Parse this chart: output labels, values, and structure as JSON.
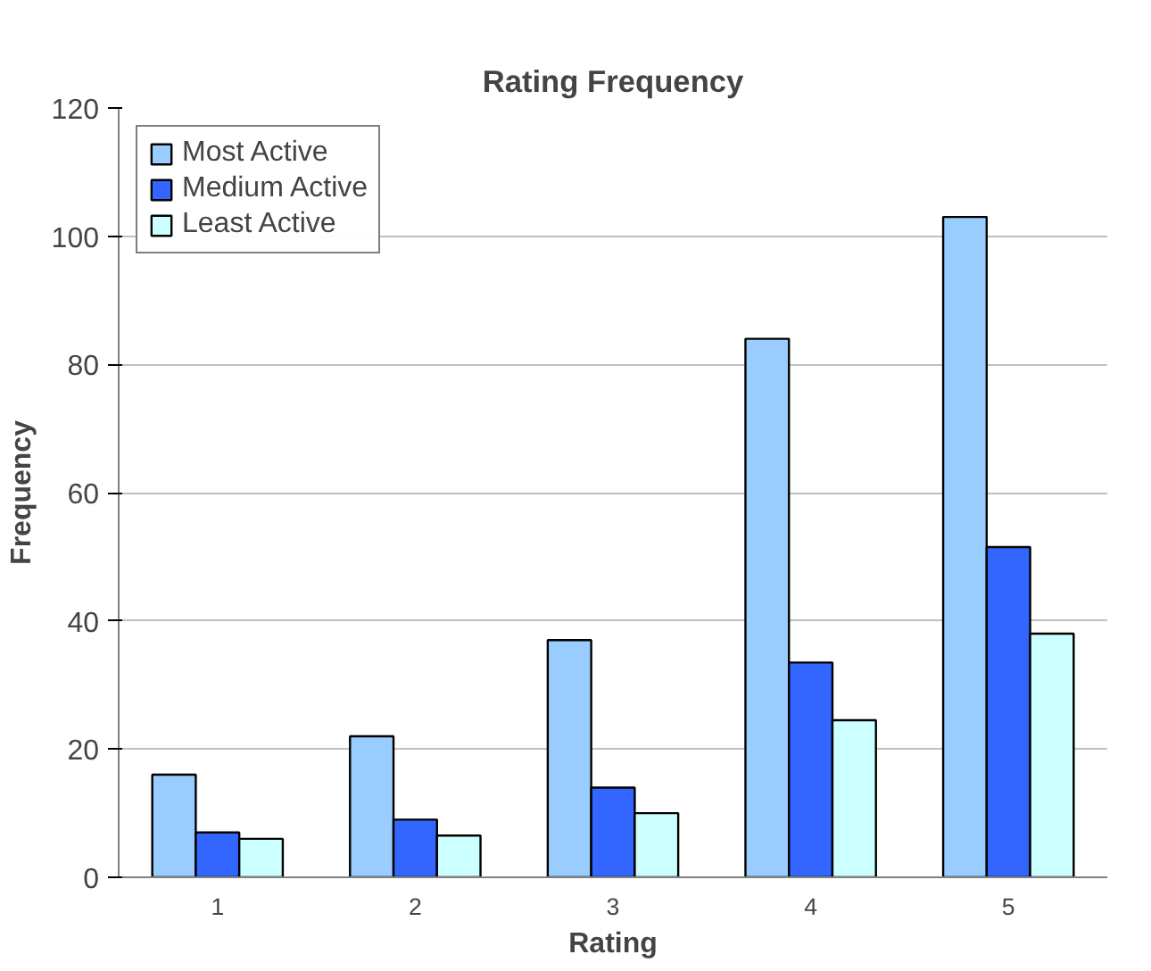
{
  "chart_data": {
    "type": "bar",
    "title": "Rating Frequency",
    "xlabel": "Rating",
    "ylabel": "Frequency",
    "categories": [
      "1",
      "2",
      "3",
      "4",
      "5"
    ],
    "series": [
      {
        "name": "Most Active",
        "color": "#99ccff",
        "values": [
          16,
          22,
          37,
          84,
          103
        ]
      },
      {
        "name": "Medium Active",
        "color": "#3366ff",
        "values": [
          7,
          9,
          14,
          33.5,
          51.5
        ]
      },
      {
        "name": "Least Active",
        "color": "#ccffff",
        "values": [
          6,
          6.5,
          10,
          24.5,
          38
        ]
      }
    ],
    "ylim": [
      0,
      120
    ],
    "yticks": [
      0,
      20,
      40,
      60,
      80,
      100,
      120
    ],
    "grid": "y",
    "legend": "top left"
  }
}
